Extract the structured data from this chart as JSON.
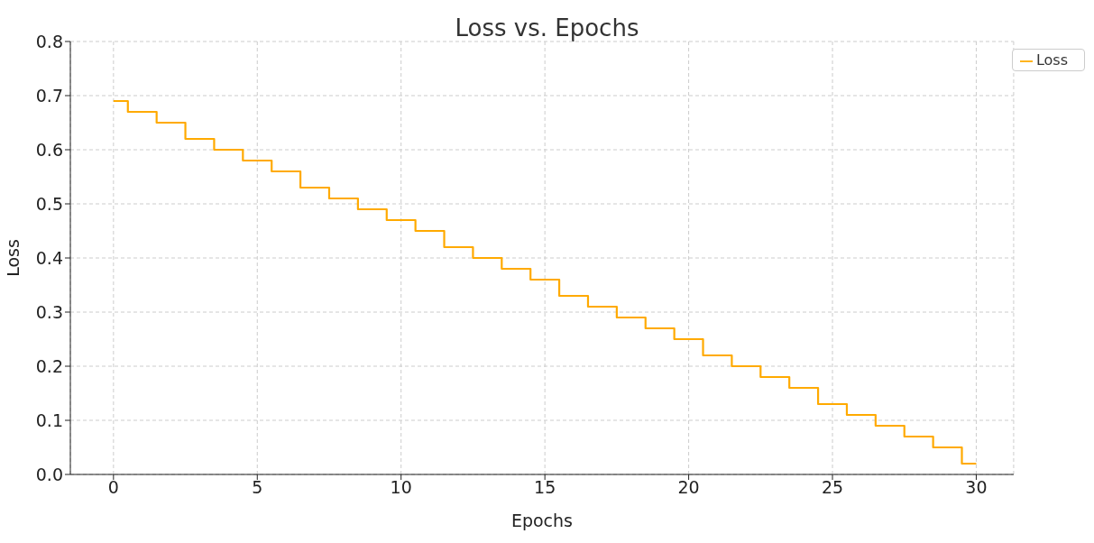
{
  "chart_data": {
    "type": "step",
    "title": "Loss vs. Epochs",
    "xlabel": "Epochs",
    "ylabel": "Loss",
    "x": [
      0,
      1,
      2,
      3,
      4,
      5,
      6,
      7,
      8,
      9,
      10,
      11,
      12,
      13,
      14,
      15,
      16,
      17,
      18,
      19,
      20,
      21,
      22,
      23,
      24,
      25,
      26,
      27,
      28,
      29,
      30
    ],
    "series": [
      {
        "name": "Loss",
        "color": "#ffaa00",
        "values": [
          0.69,
          0.67,
          0.65,
          0.62,
          0.6,
          0.58,
          0.56,
          0.53,
          0.51,
          0.49,
          0.47,
          0.45,
          0.42,
          0.4,
          0.38,
          0.36,
          0.33,
          0.31,
          0.29,
          0.27,
          0.25,
          0.22,
          0.2,
          0.18,
          0.16,
          0.13,
          0.11,
          0.09,
          0.07,
          0.05,
          0.02
        ]
      }
    ],
    "xlim": [
      -1.5,
      31.3
    ],
    "xticks": [
      0,
      5,
      10,
      15,
      20,
      25,
      30
    ],
    "ylim": [
      0,
      0.8
    ],
    "yticks": [
      {
        "value": 0,
        "label": "0.0"
      },
      0.1,
      0.2,
      0.3,
      0.4,
      0.5,
      0.6,
      0.7,
      0.8
    ],
    "grid": true,
    "legend": "top right"
  }
}
